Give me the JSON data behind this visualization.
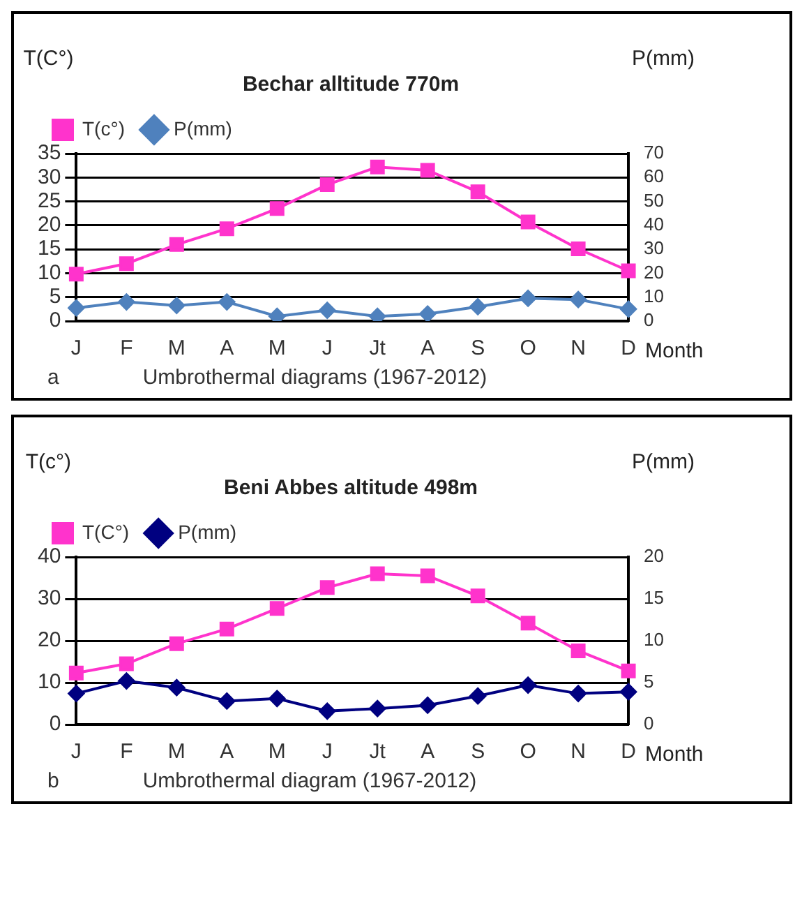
{
  "chart_data": [
    {
      "type": "line",
      "title": "Bechar alltitude 770m",
      "xlabel": "Month",
      "ylabel": "T(C°)",
      "y2label": "P(mm)",
      "annotations": [
        "a",
        "Umbrothermal diagrams (1967-2012)"
      ],
      "categories": [
        "J",
        "F",
        "M",
        "A",
        "M",
        "J",
        "Jt",
        "A",
        "S",
        "O",
        "N",
        "D"
      ],
      "series": [
        {
          "name": "T(c°)",
          "color": "#ff33cc",
          "marker": "square",
          "values": [
            9.8,
            12,
            16,
            19.3,
            23.5,
            28.5,
            32.2,
            31.5,
            27,
            20.7,
            15.1,
            10.5
          ]
        },
        {
          "name": "P(mm)",
          "color": "#4f81bd",
          "marker": "diamond",
          "axis": "y2",
          "values": [
            5.5,
            8,
            6.5,
            8,
            2,
            4.5,
            2,
            3,
            6,
            9.5,
            9,
            5
          ]
        }
      ],
      "ylim": [
        0,
        35
      ],
      "yticks": [
        0,
        5,
        10,
        15,
        20,
        25,
        30,
        35
      ],
      "y2lim": [
        0,
        70
      ],
      "y2ticks": [
        0,
        10,
        20,
        30,
        40,
        50,
        60,
        70
      ],
      "grid": "y",
      "legend": "top left"
    },
    {
      "type": "line",
      "title": "Beni Abbes altitude 498m",
      "xlabel": "Month",
      "ylabel": "T(c°)",
      "y2label": "P(mm)",
      "annotations": [
        "b",
        "Umbrothermal diagram (1967-2012)"
      ],
      "categories": [
        "J",
        "F",
        "M",
        "A",
        "M",
        "J",
        "Jt",
        "A",
        "S",
        "O",
        "N",
        "D"
      ],
      "series": [
        {
          "name": "T(C°)",
          "color": "#ff33cc",
          "marker": "square",
          "values": [
            12.3,
            14.5,
            19.3,
            22.8,
            27.7,
            32.7,
            36,
            35.5,
            30.7,
            24.2,
            17.6,
            12.8
          ]
        },
        {
          "name": "P(mm)",
          "color": "#000080",
          "marker": "diamond",
          "axis": "y2",
          "values": [
            3.7,
            5.2,
            4.4,
            2.8,
            3.1,
            1.6,
            1.9,
            2.3,
            3.4,
            4.7,
            3.7,
            3.9
          ]
        }
      ],
      "ylim": [
        0,
        40
      ],
      "yticks": [
        0,
        10,
        20,
        30,
        40
      ],
      "y2lim": [
        0,
        20
      ],
      "y2ticks": [
        0,
        5,
        10,
        15,
        20
      ],
      "grid": "y",
      "legend": "top left"
    }
  ]
}
